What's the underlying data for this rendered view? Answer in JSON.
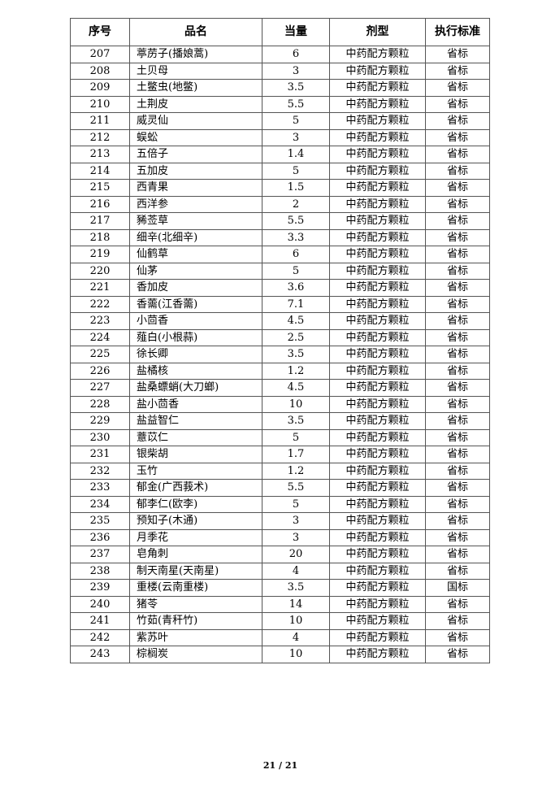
{
  "table": {
    "headers": [
      "序号",
      "品名",
      "当量",
      "剂型",
      "执行标准"
    ],
    "rows": [
      [
        "207",
        "葶苈子(播娘蒿)",
        "6",
        "中药配方颗粒",
        "省标"
      ],
      [
        "208",
        "土贝母",
        "3",
        "中药配方颗粒",
        "省标"
      ],
      [
        "209",
        "土鳖虫(地鳖)",
        "3.5",
        "中药配方颗粒",
        "省标"
      ],
      [
        "210",
        "土荆皮",
        "5.5",
        "中药配方颗粒",
        "省标"
      ],
      [
        "211",
        "威灵仙",
        "5",
        "中药配方颗粒",
        "省标"
      ],
      [
        "212",
        "蜈蚣",
        "3",
        "中药配方颗粒",
        "省标"
      ],
      [
        "213",
        "五倍子",
        "1.4",
        "中药配方颗粒",
        "省标"
      ],
      [
        "214",
        "五加皮",
        "5",
        "中药配方颗粒",
        "省标"
      ],
      [
        "215",
        "西青果",
        "1.5",
        "中药配方颗粒",
        "省标"
      ],
      [
        "216",
        "西洋参",
        "2",
        "中药配方颗粒",
        "省标"
      ],
      [
        "217",
        "豨莶草",
        "5.5",
        "中药配方颗粒",
        "省标"
      ],
      [
        "218",
        "细辛(北细辛)",
        "3.3",
        "中药配方颗粒",
        "省标"
      ],
      [
        "219",
        "仙鹤草",
        "6",
        "中药配方颗粒",
        "省标"
      ],
      [
        "220",
        "仙茅",
        "5",
        "中药配方颗粒",
        "省标"
      ],
      [
        "221",
        "香加皮",
        "3.6",
        "中药配方颗粒",
        "省标"
      ],
      [
        "222",
        "香薷(江香薷)",
        "7.1",
        "中药配方颗粒",
        "省标"
      ],
      [
        "223",
        "小茴香",
        "4.5",
        "中药配方颗粒",
        "省标"
      ],
      [
        "224",
        "薤白(小根蒜)",
        "2.5",
        "中药配方颗粒",
        "省标"
      ],
      [
        "225",
        "徐长卿",
        "3.5",
        "中药配方颗粒",
        "省标"
      ],
      [
        "226",
        "盐橘核",
        "1.2",
        "中药配方颗粒",
        "省标"
      ],
      [
        "227",
        "盐桑螵蛸(大刀螂)",
        "4.5",
        "中药配方颗粒",
        "省标"
      ],
      [
        "228",
        "盐小茴香",
        "10",
        "中药配方颗粒",
        "省标"
      ],
      [
        "229",
        "盐益智仁",
        "3.5",
        "中药配方颗粒",
        "省标"
      ],
      [
        "230",
        "薏苡仁",
        "5",
        "中药配方颗粒",
        "省标"
      ],
      [
        "231",
        "银柴胡",
        "1.7",
        "中药配方颗粒",
        "省标"
      ],
      [
        "232",
        "玉竹",
        "1.2",
        "中药配方颗粒",
        "省标"
      ],
      [
        "233",
        "郁金(广西莪术)",
        "5.5",
        "中药配方颗粒",
        "省标"
      ],
      [
        "234",
        "郁李仁(欧李)",
        "5",
        "中药配方颗粒",
        "省标"
      ],
      [
        "235",
        "预知子(木通)",
        "3",
        "中药配方颗粒",
        "省标"
      ],
      [
        "236",
        "月季花",
        "3",
        "中药配方颗粒",
        "省标"
      ],
      [
        "237",
        "皂角刺",
        "20",
        "中药配方颗粒",
        "省标"
      ],
      [
        "238",
        "制天南星(天南星)",
        "4",
        "中药配方颗粒",
        "省标"
      ],
      [
        "239",
        "重楼(云南重楼)",
        "3.5",
        "中药配方颗粒",
        "国标"
      ],
      [
        "240",
        "猪苓",
        "14",
        "中药配方颗粒",
        "省标"
      ],
      [
        "241",
        "竹茹(青秆竹)",
        "10",
        "中药配方颗粒",
        "省标"
      ],
      [
        "242",
        "紫苏叶",
        "4",
        "中药配方颗粒",
        "省标"
      ],
      [
        "243",
        "棕榈炭",
        "10",
        "中药配方颗粒",
        "省标"
      ]
    ]
  },
  "footer": {
    "page": "21 / 21"
  }
}
